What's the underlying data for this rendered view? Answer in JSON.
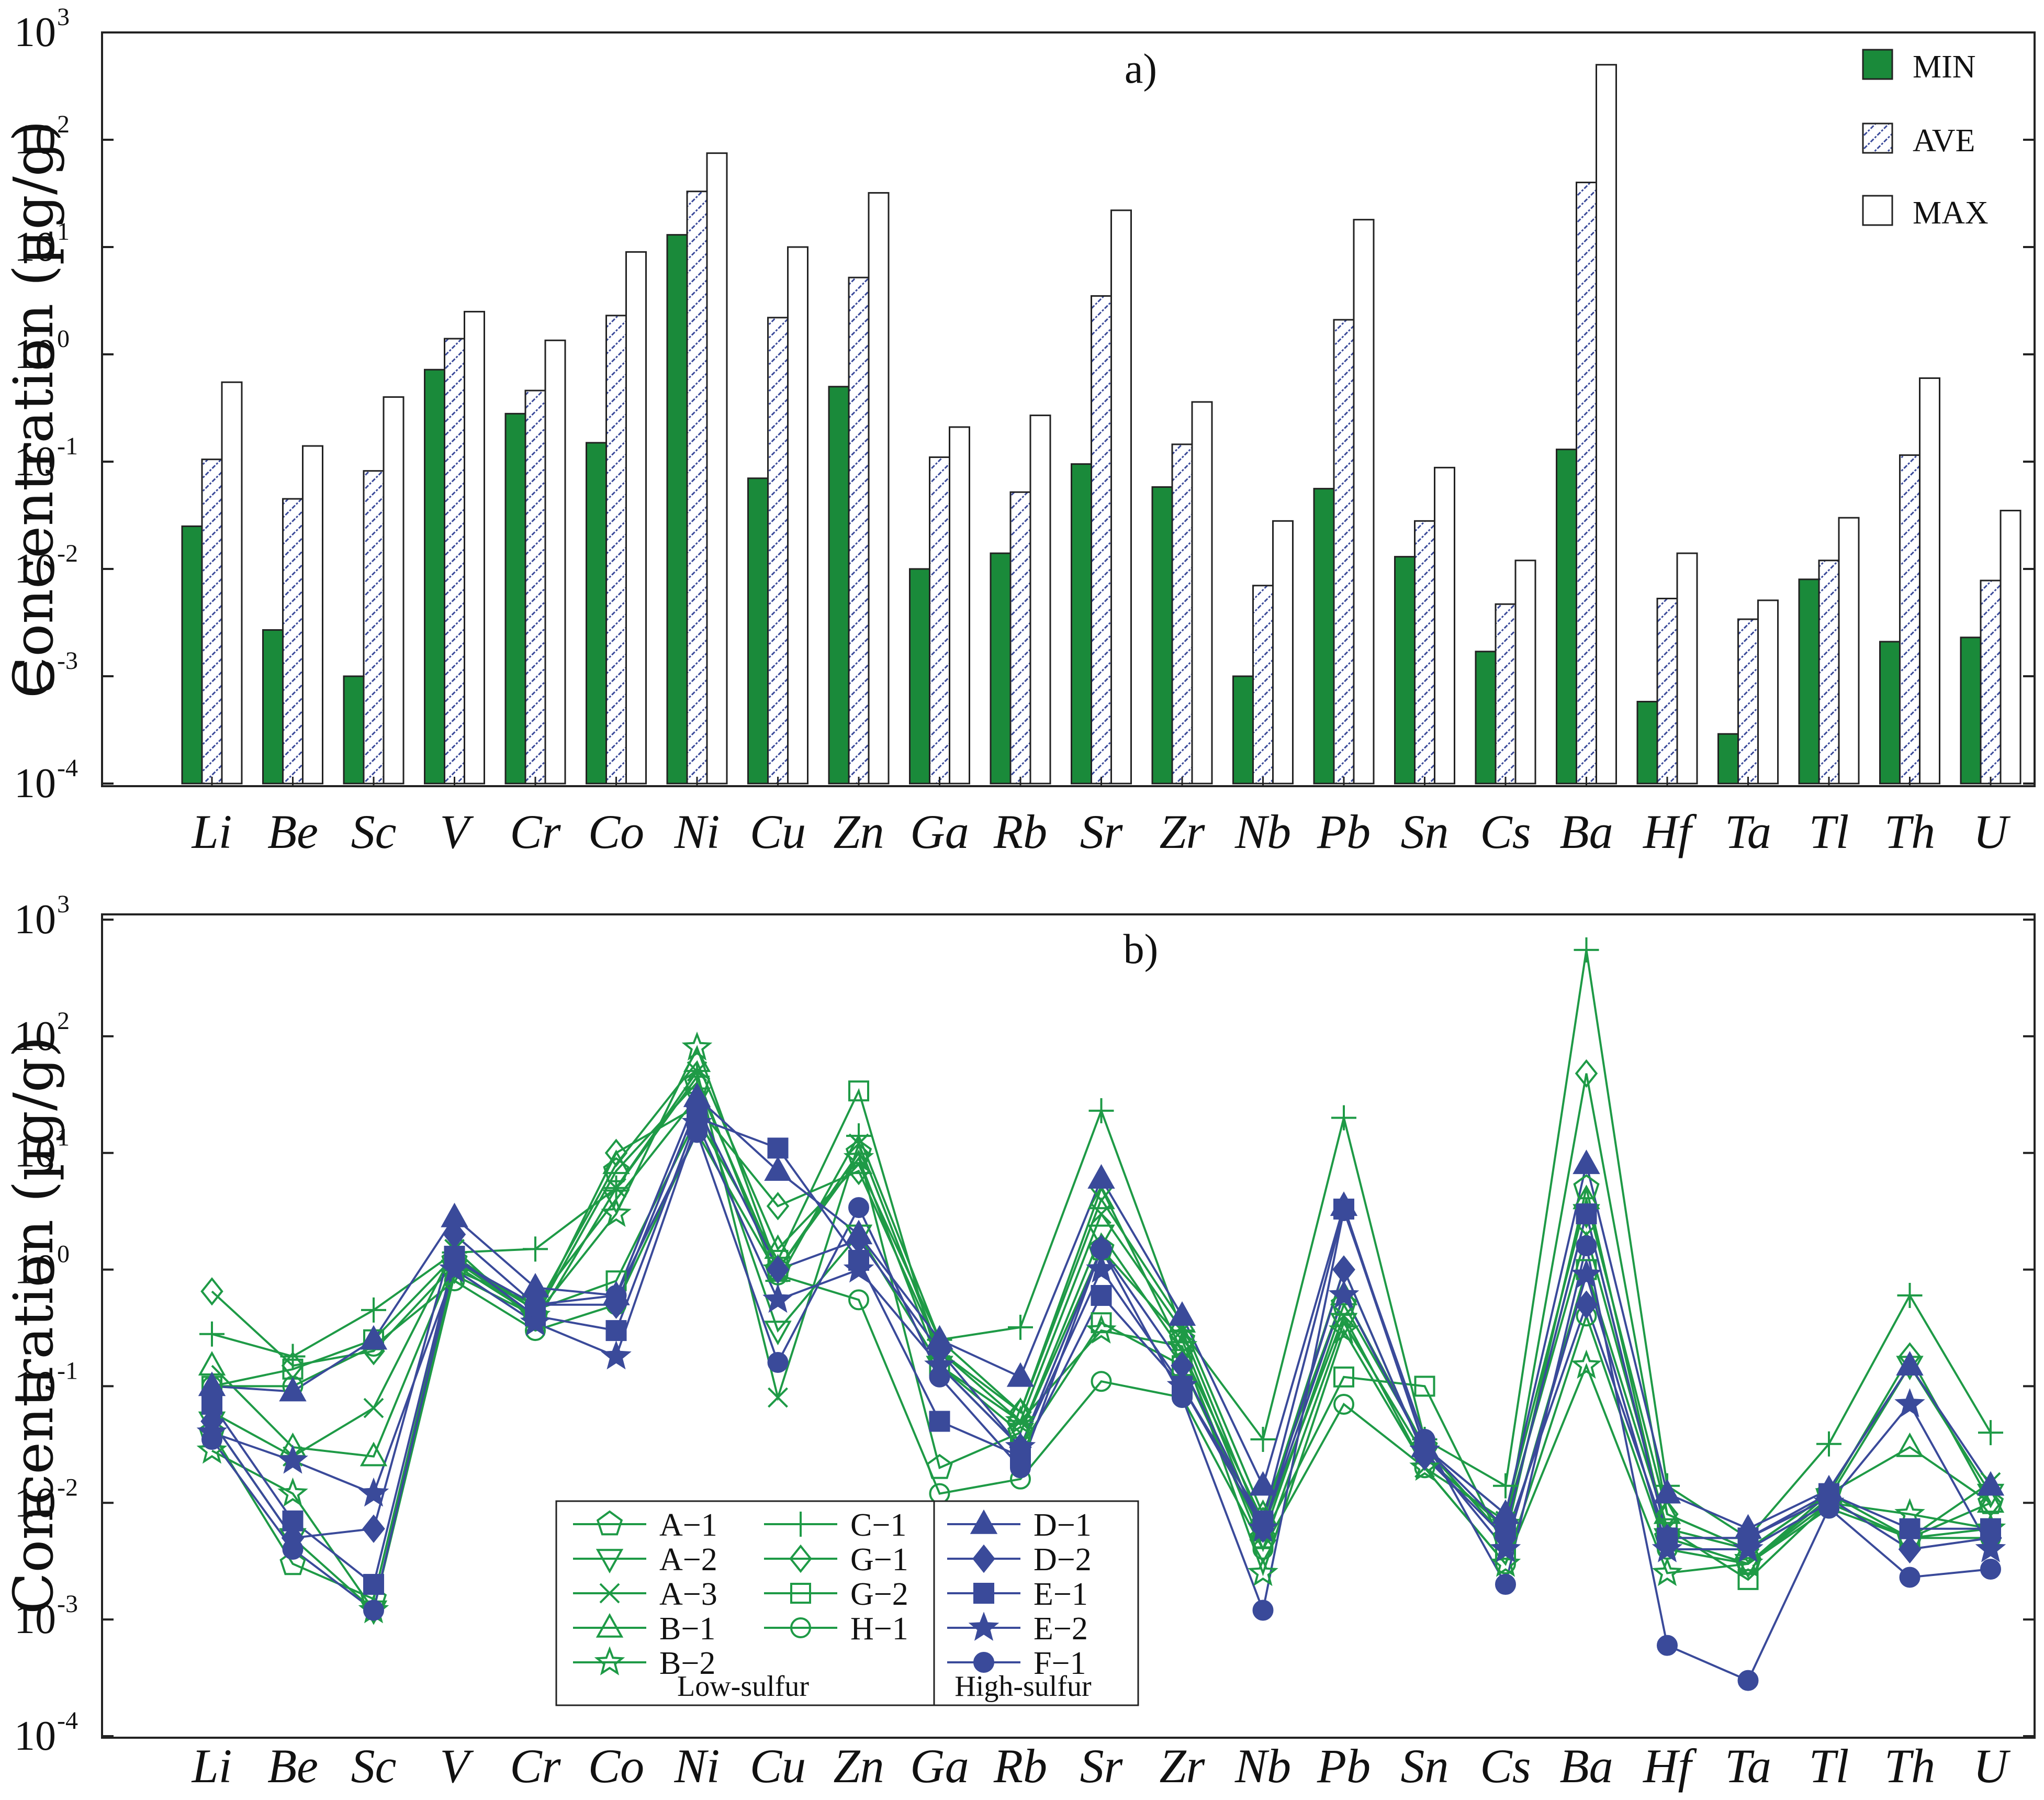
{
  "colors": {
    "min_fill": "#1a8a3a",
    "green": "#1e9a46",
    "blue": "#3a4a9a",
    "hatch": "#3a4a9a"
  },
  "chart_data": [
    {
      "type": "bar",
      "panel_label": "a)",
      "ylabel": "Concentration (µg/g)",
      "yscale": "log",
      "ylim": [
        0.0001,
        1000
      ],
      "y_ticks": [
        {
          "base": "10",
          "exp": "3"
        },
        {
          "base": "10",
          "exp": "2"
        },
        {
          "base": "10",
          "exp": "1"
        },
        {
          "base": "10",
          "exp": "0"
        },
        {
          "base": "10",
          "exp": "-1"
        },
        {
          "base": "10",
          "exp": "-2"
        },
        {
          "base": "10",
          "exp": "-3"
        },
        {
          "base": "10",
          "exp": "-4"
        }
      ],
      "categories": [
        "Li",
        "Be",
        "Sc",
        "V",
        "Cr",
        "Co",
        "Ni",
        "Cu",
        "Zn",
        "Ga",
        "Rb",
        "Sr",
        "Zr",
        "Nb",
        "Pb",
        "Sn",
        "Cs",
        "Ba",
        "Hf",
        "Ta",
        "Tl",
        "Th",
        "U"
      ],
      "legend": [
        "MIN",
        "AVE",
        "MAX"
      ],
      "series": [
        {
          "name": "MIN",
          "values": [
            0.025,
            0.0027,
            0.001,
            0.72,
            0.28,
            0.15,
            13,
            0.07,
            0.5,
            0.01,
            0.014,
            0.095,
            0.058,
            0.001,
            0.056,
            0.013,
            0.0017,
            0.13,
            0.00058,
            0.00029,
            0.008,
            0.0021,
            0.0023
          ]
        },
        {
          "name": "AVE",
          "values": [
            0.105,
            0.045,
            0.082,
            1.4,
            0.46,
            2.3,
            33,
            2.2,
            5.2,
            0.11,
            0.052,
            3.5,
            0.145,
            0.007,
            2.1,
            0.028,
            0.0047,
            40,
            0.0053,
            0.0034,
            0.012,
            0.115,
            0.0078
          ]
        },
        {
          "name": "MAX",
          "values": [
            0.55,
            0.14,
            0.4,
            2.5,
            1.35,
            9,
            75,
            10,
            32,
            0.21,
            0.27,
            22,
            0.36,
            0.028,
            18,
            0.088,
            0.012,
            500,
            0.014,
            0.0051,
            0.03,
            0.6,
            0.035
          ]
        }
      ]
    },
    {
      "type": "line",
      "panel_label": "b)",
      "ylabel": "Concentration (µg/g)",
      "yscale": "log",
      "ylim": [
        0.0001,
        1000
      ],
      "y_ticks": [
        {
          "base": "10",
          "exp": "3"
        },
        {
          "base": "10",
          "exp": "2"
        },
        {
          "base": "10",
          "exp": "1"
        },
        {
          "base": "10",
          "exp": "0"
        },
        {
          "base": "10",
          "exp": "-1"
        },
        {
          "base": "10",
          "exp": "-2"
        },
        {
          "base": "10",
          "exp": "-3"
        },
        {
          "base": "10",
          "exp": "-4"
        }
      ],
      "categories": [
        "Li",
        "Be",
        "Sc",
        "V",
        "Cr",
        "Co",
        "Ni",
        "Cu",
        "Zn",
        "Ga",
        "Rb",
        "Sr",
        "Zr",
        "Nb",
        "Pb",
        "Sn",
        "Cs",
        "Ba",
        "Hf",
        "Ta",
        "Tl",
        "Th",
        "U"
      ],
      "legend_groups": [
        "Low-sulfur",
        "High-sulfur"
      ],
      "series": [
        {
          "name": "A−1",
          "group": "low",
          "marker": "pentagon-open",
          "values": [
            0.04,
            0.003,
            0.0015,
            1.2,
            0.4,
            7,
            40,
            1,
            10,
            0.02,
            0.04,
            1.5,
            0.25,
            0.005,
            0.5,
            0.03,
            0.005,
            5,
            0.005,
            0.003,
            0.012,
            0.005,
            0.01
          ]
        },
        {
          "name": "A−2",
          "group": "low",
          "marker": "triangle-down-open",
          "values": [
            0.05,
            0.005,
            0.0012,
            1.0,
            0.5,
            4,
            30,
            0.3,
            2,
            0.15,
            0.04,
            2,
            0.2,
            0.004,
            0.35,
            0.025,
            0.006,
            3,
            0.005,
            0.003,
            0.011,
            0.15,
            0.012
          ]
        },
        {
          "name": "A−3",
          "group": "low",
          "marker": "x",
          "values": [
            0.06,
            0.025,
            0.065,
            1.5,
            0.35,
            5,
            50,
            0.08,
            12,
            0.2,
            0.05,
            3,
            0.3,
            0.006,
            0.4,
            0.02,
            0.007,
            2,
            0.006,
            0.004,
            0.01,
            0.005,
            0.015
          ]
        },
        {
          "name": "B−1",
          "group": "low",
          "marker": "triangle-open",
          "values": [
            0.15,
            0.03,
            0.025,
            1.2,
            0.45,
            8,
            60,
            1.5,
            8,
            0.25,
            0.06,
            4,
            0.35,
            0.008,
            0.6,
            0.03,
            0.008,
            4,
            0.008,
            0.004,
            0.012,
            0.03,
            0.01
          ]
        },
        {
          "name": "B−2",
          "group": "low",
          "marker": "star-open",
          "values": [
            0.028,
            0.012,
            0.0012,
            0.9,
            0.4,
            3,
            80,
            1,
            9,
            0.15,
            0.05,
            0.3,
            0.22,
            0.0025,
            0.3,
            0.02,
            0.003,
            0.15,
            0.0025,
            0.003,
            0.01,
            0.008,
            0.006
          ]
        },
        {
          "name": "C−1",
          "group": "low",
          "marker": "plus",
          "values": [
            0.28,
            0.18,
            0.45,
            1.4,
            1.5,
            5,
            45,
            0.8,
            14,
            0.25,
            0.32,
            23,
            0.3,
            0.035,
            20,
            0.035,
            0.014,
            550,
            0.014,
            0.005,
            0.032,
            0.6,
            0.04
          ]
        },
        {
          "name": "G−1",
          "group": "low",
          "marker": "diamond-open",
          "values": [
            0.65,
            0.15,
            0.2,
            1.1,
            0.4,
            10,
            25,
            3.5,
            7,
            0.2,
            0.06,
            5,
            0.2,
            0.007,
            1,
            0.025,
            0.006,
            48,
            0.008,
            0.004,
            0.012,
            0.18,
            0.01
          ]
        },
        {
          "name": "G−2",
          "group": "low",
          "marker": "square-open",
          "values": [
            0.1,
            0.14,
            0.25,
            1.3,
            0.45,
            0.8,
            20,
            1.2,
            34,
            0.15,
            0.03,
            0.35,
            0.15,
            0.005,
            0.12,
            0.1,
            0.004,
            1,
            0.006,
            0.0022,
            0.01,
            0.005,
            0.006
          ]
        },
        {
          "name": "H−1",
          "group": "low",
          "marker": "circle-open",
          "values": [
            0.1,
            0.1,
            0.22,
            0.8,
            0.3,
            0.5,
            15,
            0.9,
            0.55,
            0.012,
            0.016,
            0.11,
            0.08,
            0.004,
            0.07,
            0.02,
            0.003,
            0.4,
            0.004,
            0.003,
            0.009,
            0.005,
            0.005
          ]
        },
        {
          "name": "D−1",
          "group": "high",
          "marker": "triangle",
          "values": [
            0.1,
            0.09,
            0.25,
            2.8,
            0.7,
            0.6,
            30,
            7,
            2,
            0.25,
            0.12,
            6,
            0.4,
            0.014,
            3.5,
            0.03,
            0.008,
            8,
            0.012,
            0.006,
            0.013,
            0.15,
            0.014
          ]
        },
        {
          "name": "D−2",
          "group": "high",
          "marker": "diamond",
          "values": [
            0.05,
            0.005,
            0.006,
            2.0,
            0.5,
            0.5,
            25,
            1,
            1.8,
            0.2,
            0.03,
            1.5,
            0.15,
            0.006,
            1,
            0.025,
            0.005,
            0.5,
            0.005,
            0.005,
            0.011,
            0.004,
            0.005
          ]
        },
        {
          "name": "E−1",
          "group": "high",
          "marker": "square",
          "values": [
            0.07,
            0.007,
            0.002,
            1.3,
            0.4,
            0.3,
            20,
            11,
            1.2,
            0.05,
            0.025,
            0.6,
            0.1,
            0.007,
            3.3,
            0.03,
            0.006,
            3,
            0.005,
            0.005,
            0.012,
            0.006,
            0.006
          ]
        },
        {
          "name": "E−2",
          "group": "high",
          "marker": "star",
          "values": [
            0.04,
            0.023,
            0.012,
            1.0,
            0.35,
            0.18,
            18,
            0.55,
            1,
            0.15,
            0.03,
            1,
            0.1,
            0.006,
            0.6,
            0.028,
            0.004,
            0.9,
            0.004,
            0.004,
            0.01,
            0.07,
            0.004
          ]
        },
        {
          "name": "F−1",
          "group": "high",
          "marker": "circle",
          "values": [
            0.035,
            0.004,
            0.0012,
            1.2,
            0.5,
            0.6,
            15,
            0.16,
            3.4,
            0.12,
            0.02,
            1.5,
            0.08,
            0.0012,
            3.2,
            0.035,
            0.002,
            1.6,
            0.0006,
            0.0003,
            0.009,
            0.0023,
            0.0027
          ]
        }
      ]
    }
  ]
}
